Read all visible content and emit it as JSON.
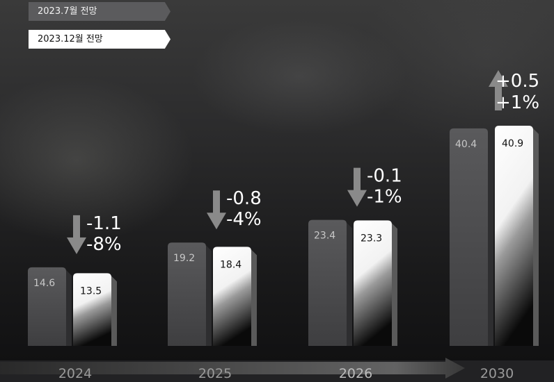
{
  "legend": {
    "jul_label": "2023.7월 전망",
    "dec_label": "2023.12월 전망"
  },
  "colors": {
    "jul_bar": "#5a5a5c",
    "dec_bar": "#ffffff",
    "background": "#1c1c1e",
    "change_text": "#ffffff"
  },
  "chart_data": {
    "type": "bar",
    "categories": [
      "2024",
      "2025",
      "2026",
      "2030"
    ],
    "series": [
      {
        "name": "2023.7월 전망",
        "values": [
          14.6,
          19.2,
          23.4,
          40.4
        ]
      },
      {
        "name": "2023.12월 전망",
        "values": [
          13.5,
          18.4,
          23.3,
          40.9
        ]
      }
    ],
    "value_labels": [
      [
        "14.6",
        "19.2",
        "23.4",
        "40.4"
      ],
      [
        "13.5",
        "18.4",
        "23.3",
        "40.9"
      ]
    ],
    "changes": [
      {
        "delta": "-1.1",
        "percent": "-8%",
        "direction": "down"
      },
      {
        "delta": "-0.8",
        "percent": "-4%",
        "direction": "down"
      },
      {
        "delta": "-0.1",
        "percent": "-1%",
        "direction": "down"
      },
      {
        "delta": "+0.5",
        "percent": "+1%",
        "direction": "up"
      }
    ],
    "title": "",
    "xlabel": "",
    "ylabel": "",
    "ylim": [
      0,
      45
    ],
    "grid": false,
    "legend_position": "top-left"
  }
}
